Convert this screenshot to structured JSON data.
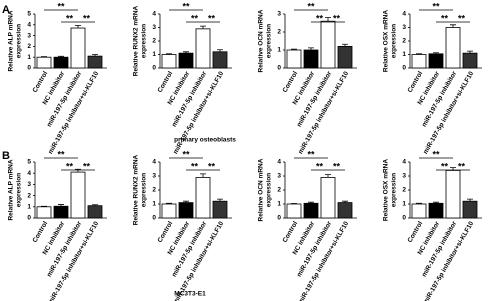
{
  "figure": {
    "panels": [
      {
        "label": "A",
        "caption": "primary osteoblasts"
      },
      {
        "label": "B",
        "caption": "MC3T3-E1"
      }
    ]
  },
  "chart_data": [
    {
      "type": "bar",
      "ylabel": [
        "Relative ALP mRNA",
        "expression"
      ],
      "categories": [
        "Control",
        "NC inhibitor",
        "miR-197-5p inhibitor",
        "miR-197-5p inhibitor+si-KLF10"
      ],
      "values": [
        1.0,
        1.0,
        3.7,
        1.1
      ],
      "errors": [
        0.05,
        0.08,
        0.25,
        0.15
      ],
      "colors": [
        "#ffffff",
        "#000000",
        "#ffffff",
        "#333333"
      ],
      "ylim": [
        0,
        5
      ],
      "yticks": [
        0,
        1,
        2,
        3,
        4,
        5
      ],
      "annotations": [
        "**",
        "**",
        "**"
      ]
    },
    {
      "type": "bar",
      "ylabel": [
        "Relative RUNX2 mRNA",
        "expression"
      ],
      "categories": [
        "Control",
        "NC inhibitor",
        "miR-197-5p inhibitor",
        "miR-197-5p inhibitor+si-KLF10"
      ],
      "values": [
        1.0,
        1.1,
        2.9,
        1.2
      ],
      "errors": [
        0.05,
        0.1,
        0.2,
        0.15
      ],
      "colors": [
        "#ffffff",
        "#000000",
        "#ffffff",
        "#333333"
      ],
      "ylim": [
        0,
        4
      ],
      "yticks": [
        0,
        1,
        2,
        3,
        4
      ],
      "annotations": [
        "**",
        "**",
        "**"
      ]
    },
    {
      "type": "bar",
      "ylabel": [
        "Relative OCN mRNA",
        "expression"
      ],
      "categories": [
        "Control",
        "NC inhibitor",
        "miR-197-5p inhibitor",
        "miR-197-5p inhibitor+si-KLF10"
      ],
      "values": [
        1.0,
        1.0,
        2.6,
        1.2
      ],
      "errors": [
        0.05,
        0.12,
        0.2,
        0.12
      ],
      "colors": [
        "#ffffff",
        "#000000",
        "#ffffff",
        "#333333"
      ],
      "ylim": [
        0,
        3
      ],
      "yticks": [
        0,
        1,
        2,
        3
      ],
      "annotations": [
        "**",
        "**",
        "**"
      ]
    },
    {
      "type": "bar",
      "ylabel": [
        "Relative OSX mRNA",
        "expression"
      ],
      "categories": [
        "Control",
        "NC inhibitor",
        "miR-197-5p inhibitor",
        "miR-197-5p inhibitor+si-KLF10"
      ],
      "values": [
        1.0,
        1.05,
        3.0,
        1.1
      ],
      "errors": [
        0.05,
        0.08,
        0.2,
        0.15
      ],
      "colors": [
        "#ffffff",
        "#000000",
        "#ffffff",
        "#333333"
      ],
      "ylim": [
        0,
        4
      ],
      "yticks": [
        0,
        1,
        2,
        3,
        4
      ],
      "annotations": [
        "**",
        "**",
        "**"
      ]
    },
    {
      "type": "bar",
      "ylabel": [
        "Relative ALP mRNA",
        "expression"
      ],
      "categories": [
        "Control",
        "NC inhibitor",
        "miR-197-5p inhibitor",
        "miR-197-5p inhibitor+si-KLF10"
      ],
      "values": [
        1.0,
        1.05,
        4.1,
        1.1
      ],
      "errors": [
        0.05,
        0.15,
        0.25,
        0.08
      ],
      "colors": [
        "#ffffff",
        "#000000",
        "#ffffff",
        "#333333"
      ],
      "ylim": [
        0,
        5
      ],
      "yticks": [
        0,
        1,
        2,
        3,
        4,
        5
      ],
      "annotations": [
        "**",
        "**",
        "**"
      ]
    },
    {
      "type": "bar",
      "ylabel": [
        "Relative RUNX2 mRNA",
        "expression"
      ],
      "categories": [
        "Control",
        "NC inhibitor",
        "miR-197-5p inhibitor",
        "miR-197-5p inhibitor+si-KLF10"
      ],
      "values": [
        1.0,
        1.1,
        2.9,
        1.2
      ],
      "errors": [
        0.05,
        0.1,
        0.25,
        0.15
      ],
      "colors": [
        "#ffffff",
        "#000000",
        "#ffffff",
        "#333333"
      ],
      "ylim": [
        0,
        4
      ],
      "yticks": [
        0,
        1,
        2,
        3,
        4
      ],
      "annotations": [
        "**",
        "**",
        "**"
      ]
    },
    {
      "type": "bar",
      "ylabel": [
        "Relative OCN mRNA",
        "expression"
      ],
      "categories": [
        "Control",
        "NC inhibitor",
        "miR-197-5p inhibitor",
        "miR-197-5p inhibitor+si-KLF10"
      ],
      "values": [
        1.0,
        1.05,
        2.9,
        1.1
      ],
      "errors": [
        0.03,
        0.08,
        0.2,
        0.1
      ],
      "colors": [
        "#ffffff",
        "#000000",
        "#ffffff",
        "#333333"
      ],
      "ylim": [
        0,
        4
      ],
      "yticks": [
        0,
        1,
        2,
        3,
        4
      ],
      "annotations": [
        "**",
        "**",
        "**"
      ]
    },
    {
      "type": "bar",
      "ylabel": [
        "Relative OSX mRNA",
        "expression"
      ],
      "categories": [
        "Control",
        "NC inhibitor",
        "miR-197-5p inhibitor",
        "miR-197-5p inhibitor+si-KLF10"
      ],
      "values": [
        1.0,
        1.05,
        3.4,
        1.2
      ],
      "errors": [
        0.05,
        0.08,
        0.2,
        0.15
      ],
      "colors": [
        "#ffffff",
        "#000000",
        "#ffffff",
        "#333333"
      ],
      "ylim": [
        0,
        4
      ],
      "yticks": [
        0,
        1,
        2,
        3,
        4
      ],
      "annotations": [
        "**",
        "**",
        "**"
      ]
    }
  ]
}
